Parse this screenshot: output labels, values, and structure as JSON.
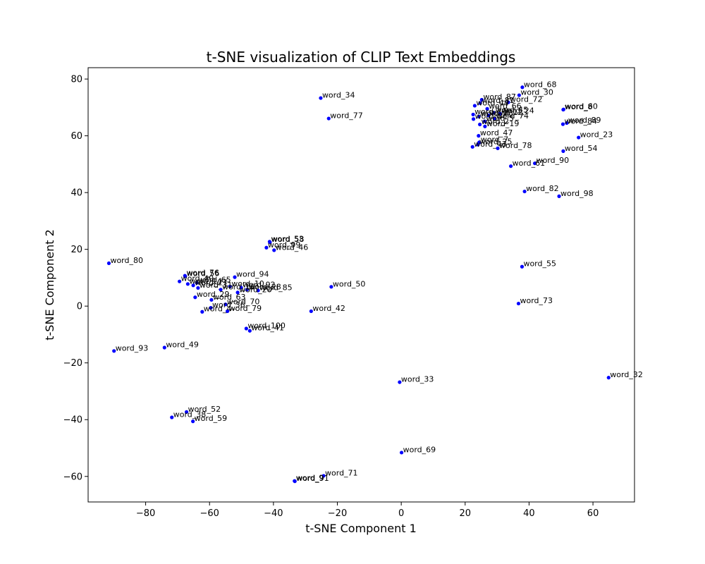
{
  "chart_data": {
    "type": "scatter",
    "title": "t-SNE visualization of CLIP Text Embeddings",
    "xlabel": "t-SNE Component 1",
    "ylabel": "t-SNE Component 2",
    "xlim": [
      -98,
      73
    ],
    "ylim": [
      -69,
      84
    ],
    "xticks": [
      -80,
      -60,
      -40,
      -20,
      0,
      20,
      40,
      60
    ],
    "yticks": [
      -60,
      -40,
      -20,
      0,
      20,
      40,
      60,
      80
    ],
    "grid": false,
    "marker_color": "#0000ff",
    "points": [
      {
        "label": "word_68",
        "x": 37.9,
        "y": 77.1
      },
      {
        "label": "word_30",
        "x": 36.9,
        "y": 74.3
      },
      {
        "label": "word_87",
        "x": 25.2,
        "y": 72.7
      },
      {
        "label": "word_72",
        "x": 33.5,
        "y": 71.8
      },
      {
        "label": "word_81",
        "x": 24.7,
        "y": 71.5
      },
      {
        "label": "word_44",
        "x": 23.0,
        "y": 70.6
      },
      {
        "label": "word_66",
        "x": 26.9,
        "y": 69.5
      },
      {
        "label": "word_8",
        "x": 50.7,
        "y": 69.2
      },
      {
        "label": "word_60",
        "x": 50.8,
        "y": 69.3
      },
      {
        "label": "word_45",
        "x": 29.0,
        "y": 68.1
      },
      {
        "label": "word_11",
        "x": 22.5,
        "y": 67.5
      },
      {
        "label": "word_24",
        "x": 30.9,
        "y": 67.8
      },
      {
        "label": "word_12",
        "x": 27.3,
        "y": 67.2
      },
      {
        "label": "word_26",
        "x": 24.3,
        "y": 66.8
      },
      {
        "label": "word_74",
        "x": 29.2,
        "y": 66.0
      },
      {
        "label": "word_3",
        "x": 22.6,
        "y": 65.9
      },
      {
        "label": "word_5",
        "x": 26.1,
        "y": 65.1
      },
      {
        "label": "word_89",
        "x": 51.8,
        "y": 64.5
      },
      {
        "label": "word_84",
        "x": 50.6,
        "y": 64.1
      },
      {
        "label": "word_2",
        "x": 24.6,
        "y": 64.0
      },
      {
        "label": "word_19",
        "x": 26.2,
        "y": 63.3
      },
      {
        "label": "word_47",
        "x": 24.2,
        "y": 60.0
      },
      {
        "label": "word_23",
        "x": 55.5,
        "y": 59.4
      },
      {
        "label": "word_7",
        "x": 24.4,
        "y": 57.7
      },
      {
        "label": "word_25",
        "x": 24.0,
        "y": 56.9
      },
      {
        "label": "word_43",
        "x": 22.3,
        "y": 56.1
      },
      {
        "label": "word_78",
        "x": 30.2,
        "y": 55.6
      },
      {
        "label": "word_54",
        "x": 50.7,
        "y": 54.6
      },
      {
        "label": "word_90",
        "x": 41.8,
        "y": 50.3
      },
      {
        "label": "word_61",
        "x": 34.3,
        "y": 49.3
      },
      {
        "label": "word_82",
        "x": 38.6,
        "y": 40.4
      },
      {
        "label": "word_98",
        "x": 49.4,
        "y": 38.7
      },
      {
        "label": "word_34",
        "x": -25.2,
        "y": 73.3
      },
      {
        "label": "word_77",
        "x": -22.7,
        "y": 66.1
      },
      {
        "label": "word_55",
        "x": 37.8,
        "y": 13.9
      },
      {
        "label": "word_73",
        "x": 36.7,
        "y": 0.9
      },
      {
        "label": "word_32",
        "x": 64.9,
        "y": -25.2
      },
      {
        "label": "word_33",
        "x": -0.5,
        "y": -26.8
      },
      {
        "label": "word_69",
        "x": 0.1,
        "y": -51.6
      },
      {
        "label": "word_71",
        "x": -24.3,
        "y": -59.8
      },
      {
        "label": "word_9",
        "x": -33.4,
        "y": -61.6
      },
      {
        "label": "word_91",
        "x": -33.3,
        "y": -61.7
      },
      {
        "label": "word_53",
        "x": -41.2,
        "y": 22.7
      },
      {
        "label": "word_58",
        "x": -41.1,
        "y": 22.5
      },
      {
        "label": "word_99",
        "x": -42.2,
        "y": 20.6
      },
      {
        "label": "word_46",
        "x": -39.8,
        "y": 19.7
      },
      {
        "label": "word_80",
        "x": -91.5,
        "y": 15.1
      },
      {
        "label": "word_76",
        "x": -67.7,
        "y": 10.7
      },
      {
        "label": "word_56",
        "x": -67.6,
        "y": 10.5
      },
      {
        "label": "word_94",
        "x": -52.1,
        "y": 10.2
      },
      {
        "label": "word_65",
        "x": -64.0,
        "y": 8.2
      },
      {
        "label": "word_40",
        "x": -69.4,
        "y": 8.7
      },
      {
        "label": "word_14",
        "x": -66.8,
        "y": 7.8
      },
      {
        "label": "word_27",
        "x": -65.1,
        "y": 7.3
      },
      {
        "label": "word_10",
        "x": -53.6,
        "y": 6.9
      },
      {
        "label": "word_92",
        "x": -50.1,
        "y": 6.5
      },
      {
        "label": "word_28",
        "x": -48.3,
        "y": 5.8
      },
      {
        "label": "word_85",
        "x": -44.8,
        "y": 5.5
      },
      {
        "label": "word_31",
        "x": -63.6,
        "y": 6.4
      },
      {
        "label": "word_20",
        "x": -51.2,
        "y": 4.8
      },
      {
        "label": "word_16",
        "x": -56.5,
        "y": 5.8
      },
      {
        "label": "word_29",
        "x": -64.5,
        "y": 3.1
      },
      {
        "label": "word_63",
        "x": -59.4,
        "y": 2.2
      },
      {
        "label": "word_70",
        "x": -55.0,
        "y": 0.6
      },
      {
        "label": "word_36",
        "x": -59.6,
        "y": -0.6
      },
      {
        "label": "word_79",
        "x": -54.4,
        "y": -1.8
      },
      {
        "label": "word_4",
        "x": -62.3,
        "y": -2.0
      },
      {
        "label": "word_50",
        "x": -21.9,
        "y": 6.8
      },
      {
        "label": "word_42",
        "x": -28.2,
        "y": -1.8
      },
      {
        "label": "word_100",
        "x": -48.5,
        "y": -7.9
      },
      {
        "label": "word_41",
        "x": -47.4,
        "y": -8.7
      },
      {
        "label": "word_49",
        "x": -74.1,
        "y": -14.6
      },
      {
        "label": "word_93",
        "x": -89.9,
        "y": -15.8
      },
      {
        "label": "word_52",
        "x": -67.2,
        "y": -37.3
      },
      {
        "label": "word_38",
        "x": -71.8,
        "y": -39.2
      },
      {
        "label": "word_59",
        "x": -65.2,
        "y": -40.6
      }
    ]
  }
}
